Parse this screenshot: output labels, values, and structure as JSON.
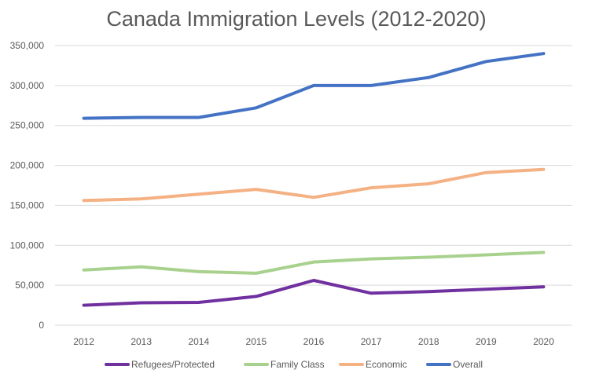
{
  "chart_data": {
    "type": "line",
    "title": "Canada Immigration Levels (2012-2020)",
    "xlabel": "",
    "ylabel": "",
    "categories": [
      "2012",
      "2013",
      "2014",
      "2015",
      "2016",
      "2017",
      "2018",
      "2019",
      "2020"
    ],
    "ylim": [
      0,
      350000
    ],
    "yticks": [
      0,
      50000,
      100000,
      150000,
      200000,
      250000,
      300000,
      350000
    ],
    "ytick_labels": [
      "0",
      "50,000",
      "100,000",
      "150,000",
      "200,000",
      "250,000",
      "300,000",
      "350,000"
    ],
    "grid": true,
    "legend_position": "bottom",
    "series": [
      {
        "name": "Refugees/Protected",
        "color": "#7030a0",
        "values": [
          25000,
          28000,
          28500,
          36000,
          56000,
          40000,
          42000,
          45000,
          48000
        ]
      },
      {
        "name": "Family Class",
        "color": "#a9d18e",
        "values": [
          69000,
          73000,
          67000,
          65000,
          79000,
          83000,
          85000,
          88000,
          91000
        ]
      },
      {
        "name": "Economic",
        "color": "#f4b183",
        "values": [
          156000,
          158000,
          164000,
          170000,
          160000,
          172000,
          177000,
          191000,
          195000
        ]
      },
      {
        "name": "Overall",
        "color": "#4472c4",
        "values": [
          259000,
          260000,
          260000,
          272000,
          300000,
          300000,
          310000,
          330000,
          340000
        ]
      }
    ]
  }
}
